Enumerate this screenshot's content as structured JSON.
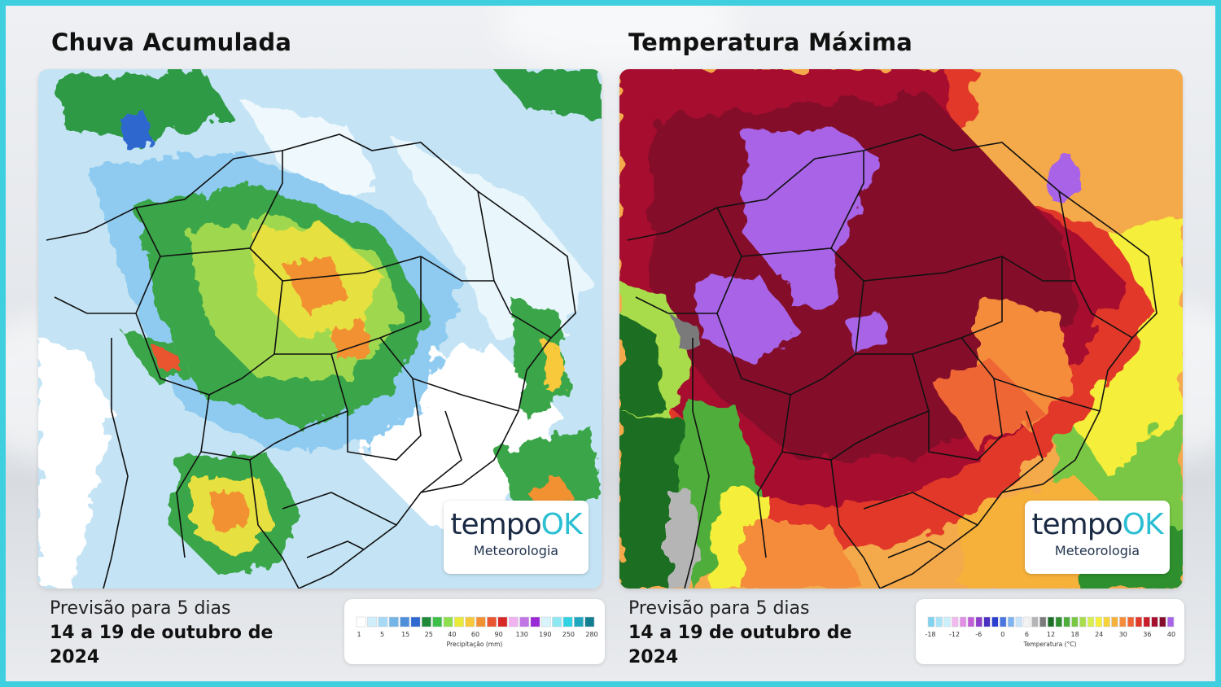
{
  "panels": [
    {
      "title": "Chuva Acumulada",
      "caption_line1": "Previsão para 5 dias",
      "caption_line2": "14 a 19 de outubro de 2024",
      "legend": {
        "title": "Precipitação (mm)",
        "ticks": [
          "1",
          "5",
          "15",
          "25",
          "40",
          "60",
          "90",
          "130",
          "190",
          "250",
          "280"
        ],
        "colors": [
          "#ffffff",
          "#cfeefa",
          "#a6d9f5",
          "#74b5e6",
          "#4f8fd9",
          "#2f68cf",
          "#1e8a3a",
          "#3dbf4a",
          "#8ede4e",
          "#eaea3a",
          "#f7c93a",
          "#f29132",
          "#e8552f",
          "#d82826",
          "#f0b3f0",
          "#c276e6",
          "#9a2ad6",
          "#d9f4fb",
          "#8de8f2",
          "#2ed2e2",
          "#20a7c0",
          "#117d8f"
        ]
      }
    },
    {
      "title": "Temperatura Máxima",
      "caption_line1": "Previsão para 5 dias",
      "caption_line2": "14 a 19 de outubro de 2024",
      "legend": {
        "title": "Temperatura (°C)",
        "ticks": [
          "-18",
          "-12",
          "-6",
          "0",
          "6",
          "12",
          "18",
          "24",
          "30",
          "36",
          "40"
        ],
        "colors": [
          "#7fd3f0",
          "#a9e4f7",
          "#c9f0fb",
          "#f2b9ee",
          "#e28fe6",
          "#c15ed8",
          "#8d3fc9",
          "#4b2fc0",
          "#2a3fcf",
          "#4a74e0",
          "#7fb3ef",
          "#c8e3f7",
          "#f2f2f2",
          "#b5b5b5",
          "#7a7a7a",
          "#1b6e24",
          "#2f8f2f",
          "#4fae3b",
          "#79c744",
          "#a8dc4b",
          "#d9ef4f",
          "#f5ef3a",
          "#f7d23a",
          "#f6b13a",
          "#f48c3a",
          "#ef6634",
          "#e2382a",
          "#c91d2b",
          "#a6102f",
          "#840d2b",
          "#a864e6"
        ]
      },
      "logo": {
        "brand": "tempo",
        "brand_ok": "OK",
        "sub": "Meteorologia"
      }
    }
  ],
  "logo": {
    "brand": "tempo",
    "brand_ok": "OK",
    "sub": "Meteorologia"
  },
  "colors": {
    "frame_border": "#3fd0df",
    "brand_accent": "#2bbfd3"
  }
}
